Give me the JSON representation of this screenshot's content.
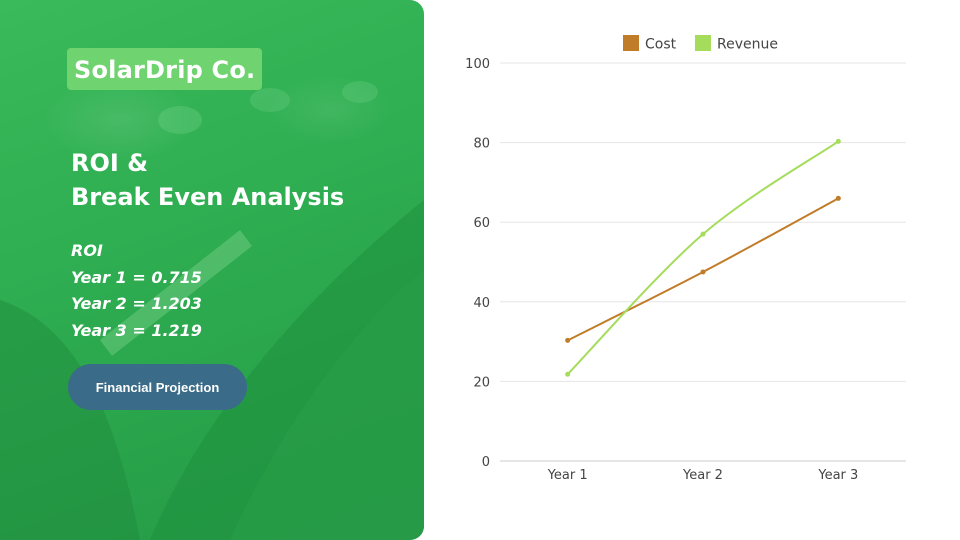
{
  "slide": {
    "brand": "SolarDrip Co.",
    "title_line1": "ROI &",
    "title_line2": "Break Even Analysis",
    "roi_heading": "ROI",
    "roi_lines": [
      "Year 1 = 0.715",
      "Year 2 = 1.203",
      "Year 3 = 1.219"
    ],
    "button_label": "Financial Projection"
  },
  "colors": {
    "hero_green": "#2fae52",
    "brand_badge": "#6fd36f",
    "button": "#3a6b88",
    "cost": "#c07c28",
    "revenue": "#a5dc5c"
  },
  "chart_data": {
    "type": "line",
    "categories": [
      "Year 1",
      "Year 2",
      "Year 3"
    ],
    "series": [
      {
        "name": "Cost",
        "values": [
          30.3,
          47.5,
          66.0
        ],
        "color": "#c07c28"
      },
      {
        "name": "Revenue",
        "values": [
          21.8,
          57.0,
          80.3
        ],
        "color": "#a5dc5c"
      }
    ],
    "yticks": [
      "0",
      "20",
      "40",
      "60",
      "80",
      "100"
    ],
    "ylim": [
      0,
      100
    ],
    "grid": true,
    "legend": "top-center",
    "title": "",
    "xlabel": "",
    "ylabel": ""
  }
}
